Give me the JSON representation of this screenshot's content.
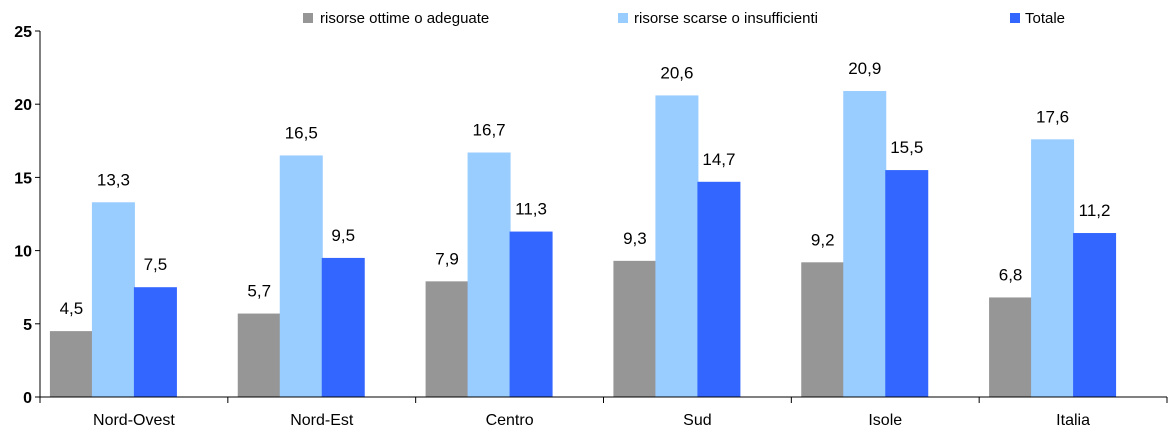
{
  "chart_data": {
    "type": "bar",
    "categories": [
      "Nord-Ovest",
      "Nord-Est",
      "Centro",
      "Sud",
      "Isole",
      "Italia"
    ],
    "series": [
      {
        "name": "risorse ottime o adeguate",
        "color": "#969696",
        "values": [
          4.5,
          5.7,
          7.9,
          9.3,
          9.2,
          6.8
        ],
        "labels": [
          "4,5",
          "5,7",
          "7,9",
          "9,3",
          "9,2",
          "6,8"
        ]
      },
      {
        "name": "risorse scarse o insufficienti",
        "color": "#99ccff",
        "values": [
          13.3,
          16.5,
          16.7,
          20.6,
          20.9,
          17.6
        ],
        "labels": [
          "13,3",
          "16,5",
          "16,7",
          "20,6",
          "20,9",
          "17,6"
        ]
      },
      {
        "name": "Totale",
        "color": "#3366ff",
        "values": [
          7.5,
          9.5,
          11.3,
          14.7,
          15.5,
          11.2
        ],
        "labels": [
          "7,5",
          "9,5",
          "11,3",
          "14,7",
          "15,5",
          "11,2"
        ]
      }
    ],
    "ylim": [
      0,
      25
    ],
    "yticks": [
      0,
      5,
      10,
      15,
      20,
      25
    ],
    "grid": false,
    "legend_position": "top"
  }
}
